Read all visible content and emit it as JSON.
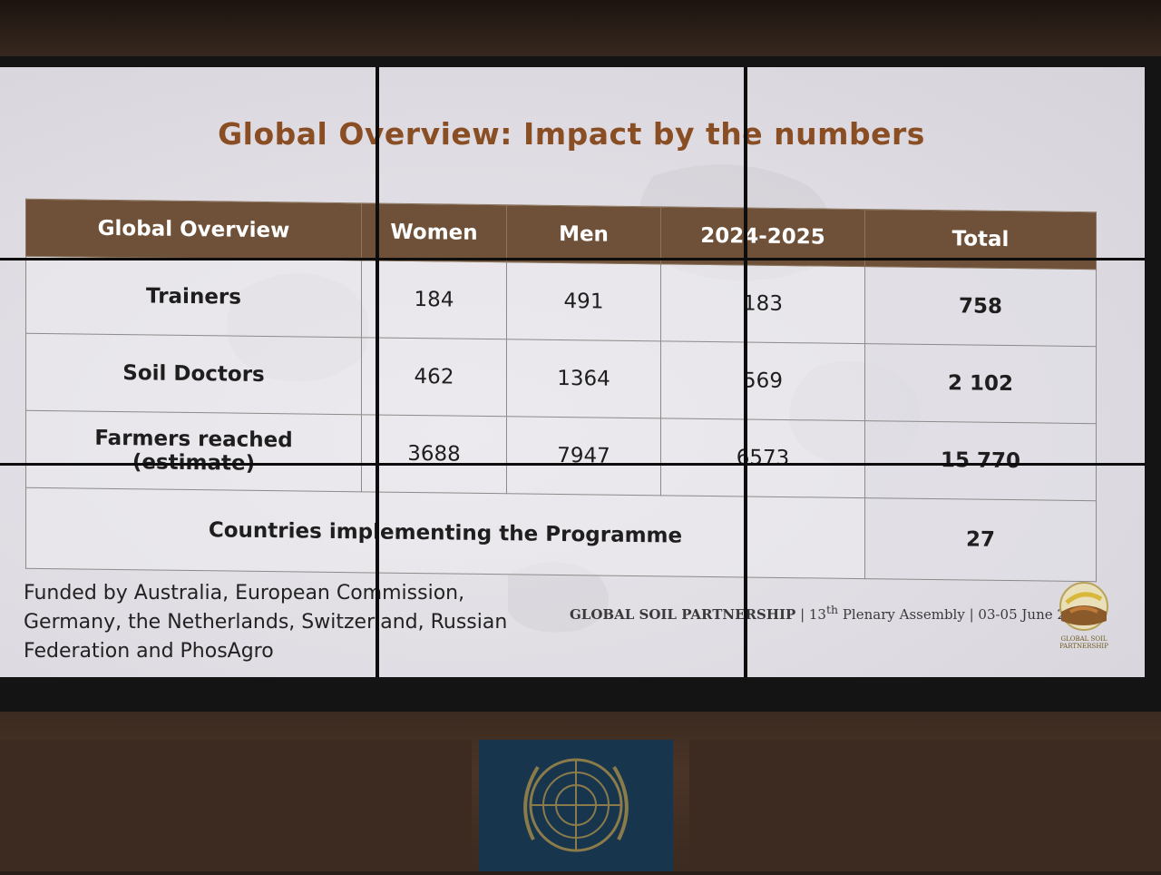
{
  "slide": {
    "title": "Global Overview: Impact by the numbers",
    "table": {
      "headers": [
        "Global Overview",
        "Women",
        "Men",
        "2024-2025",
        "Total"
      ],
      "rows": [
        {
          "label": "Trainers",
          "women": "184",
          "men": "491",
          "period": "183",
          "total": "758"
        },
        {
          "label": "Soil Doctors",
          "women": "462",
          "men": "1364",
          "period": "569",
          "total": "2 102"
        },
        {
          "label_line1": "Farmers reached",
          "label_line2": "(estimate)",
          "women": "3688",
          "men": "7947",
          "period": "6573",
          "total": "15 770"
        }
      ],
      "countries_label": "Countries implementing the Programme",
      "countries_total": "27"
    },
    "funded_by": "Funded by Australia, European Commission, Germany, the Netherlands, Switzerland, Russian Federation and PhosAgro",
    "footer": {
      "organization": "GLOBAL SOIL PARTNERSHIP",
      "event_prefix": " | 13",
      "event_sup": "th",
      "event_suffix": " Plenary Assembly | 03-05 June 2025"
    },
    "logo_text_line1": "GLOBAL SOIL",
    "logo_text_line2": "PARTNERSHIP"
  },
  "colors": {
    "title": "#8a4e24",
    "header_bg": "#6e5138",
    "un_blue": "#17364e"
  },
  "icons": [
    "global-soil-partnership-logo",
    "un-emblem"
  ]
}
